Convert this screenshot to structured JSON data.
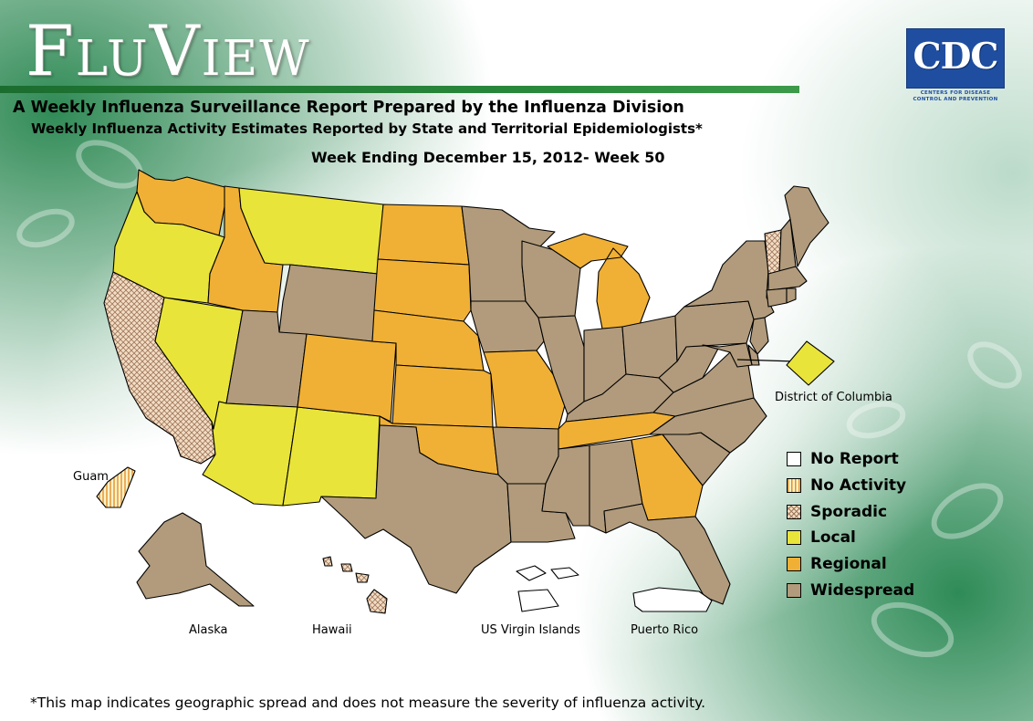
{
  "header": {
    "app_title": "FluView",
    "subtitle_1": "A Weekly Influenza Surveillance Report Prepared by the Influenza Division",
    "subtitle_2": "Weekly Influenza Activity Estimates Reported by State and Territorial Epidemiologists*",
    "week_label": "Week Ending December 15, 2012- Week 50"
  },
  "logo": {
    "text": "CDC",
    "subtitle": "CENTERS FOR DISEASE CONTROL AND PREVENTION",
    "color": "#1f4ea1"
  },
  "legend": {
    "items": [
      {
        "key": "no_report",
        "label": "No Report",
        "color": "#ffffff"
      },
      {
        "key": "no_activity",
        "label": "No Activity",
        "color": "#fbe0a8"
      },
      {
        "key": "sporadic",
        "label": "Sporadic",
        "color": "#e9c49c"
      },
      {
        "key": "local",
        "label": "Local",
        "color": "#e9e43a"
      },
      {
        "key": "regional",
        "label": "Regional",
        "color": "#f0b035"
      },
      {
        "key": "widespread",
        "label": "Widespread",
        "color": "#b19b7c"
      }
    ]
  },
  "map_labels": {
    "dc": "District of Columbia",
    "guam": "Guam",
    "alaska": "Alaska",
    "hawaii": "Hawaii",
    "virgin_islands": "US Virgin Islands",
    "puerto_rico": "Puerto Rico"
  },
  "regions": {
    "WA": "regional",
    "OR": "local",
    "CA": "sporadic",
    "NV": "local",
    "ID": "regional",
    "MT": "local",
    "WY": "widespread",
    "UT": "widespread",
    "AZ": "local",
    "NM": "local",
    "CO": "regional",
    "ND": "regional",
    "SD": "regional",
    "NE": "regional",
    "KS": "regional",
    "OK": "regional",
    "TX": "widespread",
    "MN": "widespread",
    "IA": "widespread",
    "MO": "regional",
    "AR": "widespread",
    "LA": "widespread",
    "WI": "widespread",
    "IL": "widespread",
    "MI": "regional",
    "IN": "widespread",
    "OH": "widespread",
    "KY": "widespread",
    "TN": "regional",
    "MS": "widespread",
    "AL": "widespread",
    "GA": "regional",
    "FL": "widespread",
    "SC": "widespread",
    "NC": "widespread",
    "VA": "widespread",
    "WV": "widespread",
    "PA": "widespread",
    "NY": "widespread",
    "VT": "sporadic",
    "NH": "widespread",
    "ME": "widespread",
    "MA": "widespread",
    "CT": "widespread",
    "RI": "widespread",
    "NJ": "widespread",
    "DE": "widespread",
    "MD": "widespread",
    "DC": "local",
    "AK": "widespread",
    "HI": "sporadic",
    "GU": "no_activity",
    "VI": "no_report",
    "PR": "no_report"
  },
  "footnote": "*This map indicates geographic spread and does not measure the severity of influenza activity."
}
